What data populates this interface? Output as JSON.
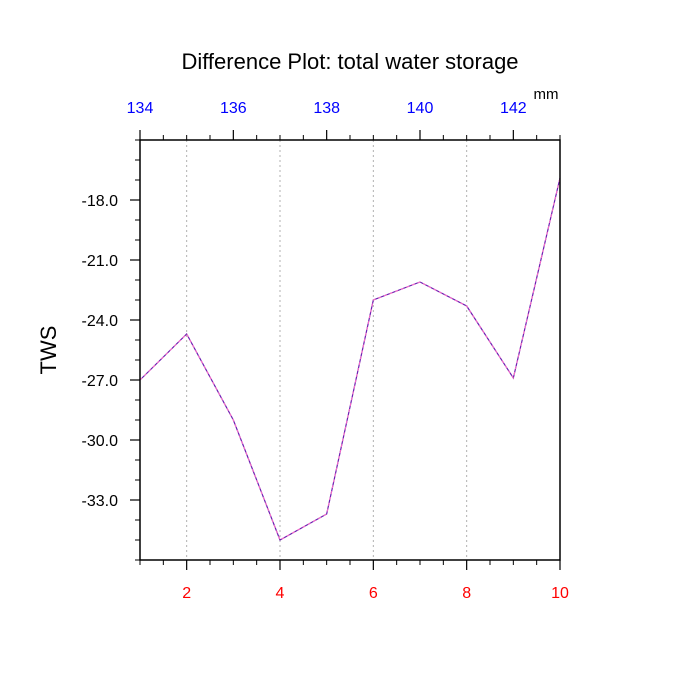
{
  "chart_data": {
    "type": "line",
    "title": "Difference Plot: total water storage",
    "ylabel": "TWS",
    "xlabel": "",
    "top_axis_unit": "mm",
    "x": [
      1,
      2,
      3,
      4,
      5,
      6,
      7,
      8,
      9,
      10
    ],
    "series": [
      {
        "values": [
          -27.0,
          -24.7,
          -29.0,
          -35.0,
          -33.7,
          -23.0,
          -22.1,
          -23.3,
          -26.9,
          -16.9
        ]
      }
    ],
    "xlim": [
      1,
      10
    ],
    "ylim": [
      -36.0,
      -15.0
    ],
    "x_ticks": [
      2,
      4,
      6,
      8,
      10
    ],
    "x_tick_labels": [
      "2",
      "4",
      "6",
      "8",
      "10"
    ],
    "y_ticks": [
      -18.0,
      -21.0,
      -24.0,
      -27.0,
      -30.0,
      -33.0
    ],
    "y_tick_labels": [
      "-18.0",
      "-21.0",
      "-24.0",
      "-27.0",
      "-30.0",
      "-33.0"
    ],
    "top_axis": {
      "lim": [
        134,
        143
      ],
      "ticks": [
        134,
        136,
        138,
        140,
        142
      ],
      "tick_labels": [
        "134",
        "136",
        "138",
        "140",
        "142"
      ]
    },
    "grid": "vertical dashed at x major ticks",
    "colors": {
      "line": "#6a1fb0",
      "line_dash": "#ff6cc8",
      "bottom_tick_labels": "#ff0000",
      "top_tick_labels": "#0000ff",
      "grid": "#b0b0b0",
      "axes": "#000000"
    }
  }
}
